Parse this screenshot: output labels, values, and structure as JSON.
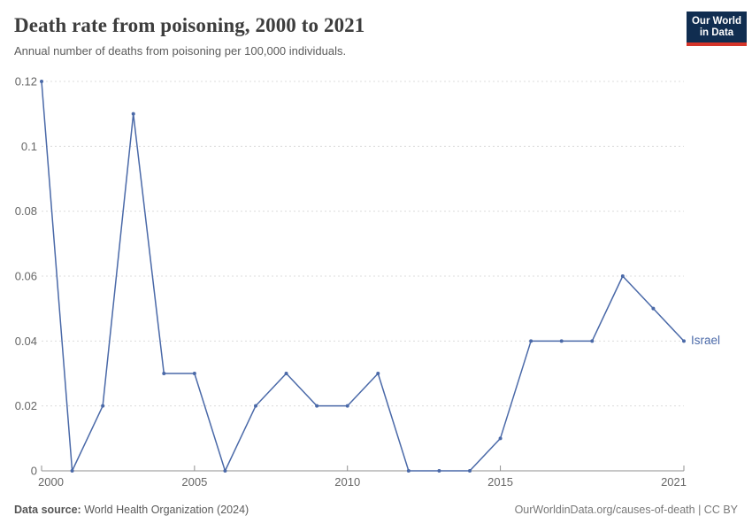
{
  "header": {
    "title": "Death rate from poisoning, 2000 to 2021",
    "subtitle": "Annual number of deaths from poisoning per 100,000 individuals.",
    "logo": {
      "line1": "Our World",
      "line2": "in Data",
      "bg_color": "#102d50",
      "accent_color": "#d5352a"
    }
  },
  "chart_data": {
    "type": "line",
    "title": "Death rate from poisoning, 2000 to 2021",
    "x": [
      2000,
      2001,
      2002,
      2003,
      2004,
      2005,
      2006,
      2007,
      2008,
      2009,
      2010,
      2011,
      2012,
      2013,
      2014,
      2015,
      2016,
      2017,
      2018,
      2019,
      2020,
      2021
    ],
    "series": [
      {
        "name": "Israel",
        "color": "#4a69a8",
        "values": [
          0.12,
          0,
          0.02,
          0.11,
          0.03,
          0.03,
          0,
          0.02,
          0.03,
          0.02,
          0.02,
          0.03,
          0,
          0,
          0,
          0.01,
          0.04,
          0.04,
          0.04,
          0.06,
          0.05,
          0.04
        ]
      }
    ],
    "xlabel": "",
    "ylabel": "",
    "ylim": [
      0,
      0.12
    ],
    "yticks": [
      0,
      0.02,
      0.04,
      0.06,
      0.08,
      0.1,
      0.12
    ],
    "ytick_labels": [
      "0",
      "0.02",
      "0.04",
      "0.06",
      "0.08",
      "0.1",
      "0.12"
    ],
    "xticks": [
      2000,
      2005,
      2010,
      2015,
      2021
    ],
    "grid": "horizontal-dashed",
    "grid_color": "#dcdcdc",
    "axis_color": "#8f8f8f",
    "tick_label_color": "#666666",
    "legend_position": "end-of-line-label",
    "marker": "dot"
  },
  "footer": {
    "source_label": "Data source:",
    "source_text": " World Health Organization (2024)",
    "rights": "OurWorldinData.org/causes-of-death | CC BY"
  }
}
